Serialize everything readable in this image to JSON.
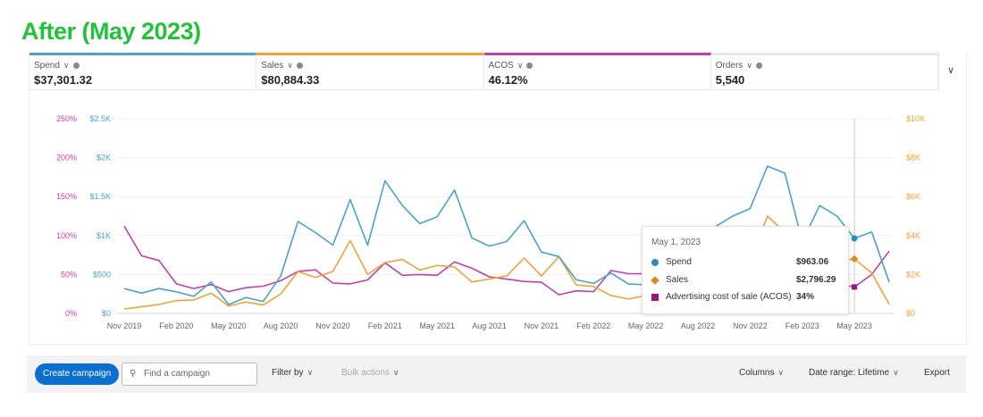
{
  "heading": "After (May 2023)",
  "metrics": [
    {
      "label": "Spend",
      "value": "$37,301.32",
      "color": "#4aa3c8"
    },
    {
      "label": "Sales",
      "value": "$80,884.33",
      "color": "#f0a33a"
    },
    {
      "label": "ACOS",
      "value": "46.12%",
      "color": "#c23fb0"
    },
    {
      "label": "Orders",
      "value": "5,540",
      "color": "#e6e9ec"
    }
  ],
  "chart_data": {
    "type": "line",
    "x_ticks": [
      "Nov 2019",
      "Feb 2020",
      "May 2020",
      "Aug 2020",
      "Nov 2020",
      "Feb 2021",
      "May 2021",
      "Aug 2021",
      "Nov 2021",
      "Feb 2022",
      "May 2022",
      "Aug 2022",
      "Nov 2022",
      "Feb 2023",
      "May 2023"
    ],
    "x_start": "Nov 2019",
    "x_end": "Jul 2023",
    "x_interval": "monthly",
    "y_left_acos_ticks": [
      "0%",
      "50%",
      "100%",
      "150%",
      "200%",
      "250%"
    ],
    "y_left_spend_ticks": [
      "$0",
      "$500",
      "$1K",
      "$1.5K",
      "$2K",
      "$2.5K"
    ],
    "y_right_sales_ticks": [
      "$0",
      "$2K",
      "$4K",
      "$6K",
      "$8K",
      "$10K"
    ],
    "ylim_spend": [
      0,
      2500
    ],
    "ylim_sales": [
      0,
      10000
    ],
    "ylim_acos": [
      0,
      250
    ],
    "grid": true,
    "series": [
      {
        "name": "Spend",
        "axis": "left-spend",
        "color": "#4aa3c8",
        "values": [
          319,
          262,
          319,
          277,
          219,
          404,
          115,
          204,
          154,
          480,
          1181,
          1038,
          877,
          1462,
          877,
          1704,
          1385,
          1154,
          1242,
          1585,
          969,
          865,
          923,
          1192,
          788,
          731,
          431,
          385,
          519,
          377,
          369,
          519,
          700,
          850,
          1115,
          1250,
          1346,
          1892,
          1800,
          923,
          1385,
          1250,
          963,
          1046,
          404
        ]
      },
      {
        "name": "Sales",
        "axis": "right-sales",
        "color": "#f0a33a",
        "values": [
          231,
          338,
          462,
          662,
          692,
          1046,
          385,
          585,
          431,
          1000,
          2154,
          1846,
          2154,
          3738,
          2000,
          2615,
          2769,
          2231,
          2462,
          2385,
          1615,
          1769,
          1923,
          2846,
          1923,
          2923,
          1462,
          1385,
          923,
          738,
          923,
          783,
          900,
          1300,
          2000,
          2200,
          2600,
          5000,
          4154,
          2700,
          2700,
          2692,
          2796,
          2077,
          462
        ]
      },
      {
        "name": "Advertising cost of sale (ACOS)",
        "axis": "left-acos",
        "color": "#c23fb0",
        "values": [
          112,
          74,
          68,
          38,
          32,
          37,
          28,
          33,
          35,
          42,
          54,
          56,
          39,
          38,
          43,
          65,
          49,
          50,
          49,
          66,
          58,
          47,
          44,
          41,
          40,
          24,
          29,
          28,
          55,
          51,
          51,
          50,
          45,
          45,
          48,
          46,
          50,
          45,
          42,
          40,
          38,
          38,
          34,
          50,
          80
        ]
      }
    ],
    "highlight_index": 42
  },
  "tooltip": {
    "date": "May 1, 2023",
    "rows": [
      {
        "label": "Spend",
        "value": "$963.06",
        "color": "#2b8fb5"
      },
      {
        "label": "Sales",
        "value": "$2,796.29",
        "color": "#e08a1e"
      },
      {
        "label": "Advertising cost of sale (ACOS)",
        "value": "34%",
        "color": "#a0127f"
      }
    ]
  },
  "toolbar": {
    "create": "Create campaign",
    "search_placeholder": "Find a campaign",
    "filter": "Filter by",
    "bulk": "Bulk actions",
    "columns": "Columns",
    "date_range": "Date range: Lifetime",
    "export": "Export"
  }
}
